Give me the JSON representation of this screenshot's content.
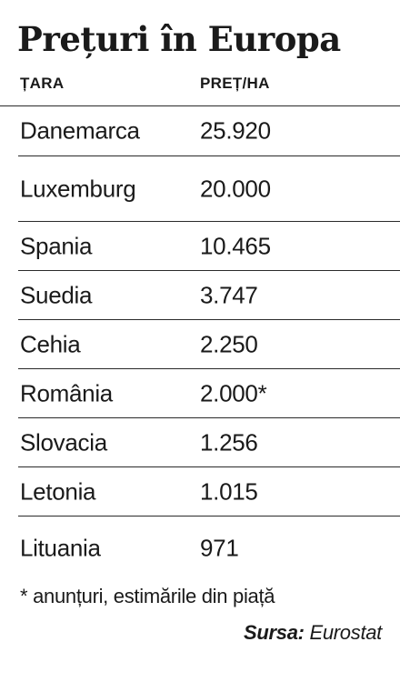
{
  "title": "Prețuri în Europa",
  "header": {
    "country": "ȚARA",
    "price": "PREȚ/HA"
  },
  "rows": [
    {
      "country": "Danemarca",
      "price": "25.920"
    },
    {
      "country": "Luxemburg",
      "price": "20.000"
    },
    {
      "country": "Spania",
      "price": "10.465"
    },
    {
      "country": "Suedia",
      "price": "3.747"
    },
    {
      "country": "Cehia",
      "price": "2.250"
    },
    {
      "country": "România",
      "price": "2.000*"
    },
    {
      "country": "Slovacia",
      "price": "1.256"
    },
    {
      "country": "Letonia",
      "price": "1.015"
    },
    {
      "country": "Lituania",
      "price": "971"
    }
  ],
  "footnote": "* anunțuri, estimările din piață",
  "source": {
    "label": "Sursa:",
    "value": "Eurostat"
  }
}
